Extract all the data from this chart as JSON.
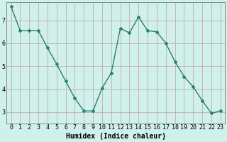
{
  "x": [
    0,
    1,
    2,
    3,
    4,
    5,
    6,
    7,
    8,
    9,
    10,
    11,
    12,
    13,
    14,
    15,
    16,
    17,
    18,
    19,
    20,
    21,
    22,
    23
  ],
  "y": [
    7.6,
    6.55,
    6.55,
    6.55,
    5.8,
    5.1,
    4.35,
    3.6,
    3.05,
    3.05,
    4.05,
    4.7,
    6.65,
    6.45,
    7.15,
    6.55,
    6.5,
    6.0,
    5.2,
    4.55,
    4.1,
    3.5,
    2.95,
    3.05
  ],
  "line_color": "#2e7d6e",
  "marker": "D",
  "marker_size": 2.0,
  "linewidth": 1.0,
  "bg_color": "#cff0eb",
  "grid_color": "#c0a0a0",
  "xlabel": "Humidex (Indice chaleur)",
  "ylim": [
    2.5,
    7.8
  ],
  "yticks": [
    3,
    4,
    5,
    6,
    7
  ],
  "xlim": [
    -0.5,
    23.5
  ],
  "xlabel_fontsize": 7,
  "tick_fontsize": 6
}
